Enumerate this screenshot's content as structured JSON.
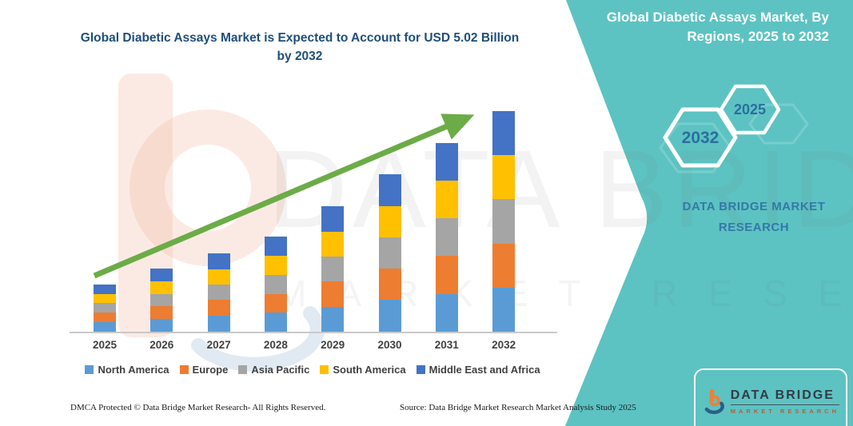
{
  "header": {
    "chart_title": "Global Diabetic Assays Market is Expected to Account for USD 5.02 Billion by 2032"
  },
  "chart_data": {
    "type": "bar",
    "stacked": true,
    "title": "Global Diabetic Assays Market is Expected to Account for USD 5.02 Billion by 2032",
    "unit": "USD Billion",
    "categories": [
      "2025",
      "2026",
      "2027",
      "2028",
      "2029",
      "2030",
      "2031",
      "2032"
    ],
    "series": [
      {
        "name": "North America",
        "color": "#5B9BD5",
        "values": [
          0.22,
          0.29,
          0.36,
          0.43,
          0.57,
          0.72,
          0.86,
          1.0
        ]
      },
      {
        "name": "Europe",
        "color": "#ED7D31",
        "values": [
          0.21,
          0.29,
          0.36,
          0.43,
          0.57,
          0.72,
          0.86,
          1.0
        ]
      },
      {
        "name": "Asia Pacific",
        "color": "#A5A5A5",
        "values": [
          0.22,
          0.28,
          0.35,
          0.43,
          0.57,
          0.71,
          0.86,
          1.01
        ]
      },
      {
        "name": "South America",
        "color": "#FFC000",
        "values": [
          0.21,
          0.29,
          0.35,
          0.43,
          0.57,
          0.71,
          0.86,
          1.0
        ]
      },
      {
        "name": "Middle East and Africa",
        "color": "#4472C4",
        "values": [
          0.22,
          0.28,
          0.36,
          0.44,
          0.58,
          0.72,
          0.86,
          1.01
        ]
      }
    ],
    "totals": [
      1.08,
      1.43,
      1.78,
      2.16,
      2.86,
      3.58,
      4.3,
      5.02
    ],
    "ylim": [
      0,
      5.5
    ],
    "axes_hidden": true,
    "legend_position": "bottom",
    "annotations": [
      "upward growth trend arrow from 2025 to 2032"
    ]
  },
  "panel": {
    "title": "Global Diabetic Assays Market, By Regions, 2025 to 2032",
    "hexagon_large_label": "2032",
    "hexagon_small_label": "2025",
    "brand_line1": "DATA BRIDGE MARKET",
    "brand_line2": "RESEARCH",
    "background_color": "#5CC3C2",
    "hexagon_text_color": "#2C6E9E"
  },
  "watermark": {
    "big_text": "DATA BRIDGE",
    "sub_text": "MARKET RESEARCH"
  },
  "logo_box": {
    "brand": "DATA BRIDGE",
    "sub": "MARKET RESEARCH"
  },
  "footer": {
    "dmca": "DMCA Protected © Data Bridge Market Research-  All Rights Reserved.",
    "source": "Source: Data Bridge Market Research  Market Analysis Study 2025"
  },
  "colors": {
    "title_blue": "#1F4E79",
    "arrow_green": "#6CAC47",
    "axis_gray": "#C9C9C9"
  }
}
